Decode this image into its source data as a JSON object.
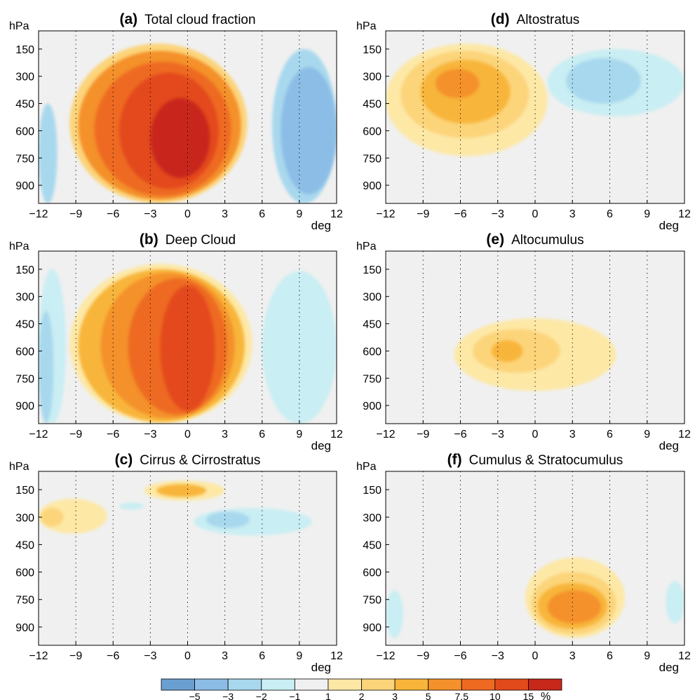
{
  "figure": {
    "colorbar": {
      "labels": [
        "−5",
        "−3",
        "−2",
        "−1",
        "1",
        "2",
        "3",
        "5",
        "7.5",
        "10",
        "15"
      ],
      "unit": "%",
      "colors": [
        "#6a9fd1",
        "#8cbde6",
        "#a8d8ed",
        "#c9eef3",
        "#f0f0f0",
        "#fde8a6",
        "#fcd47a",
        "#f8b53a",
        "#f4912a",
        "#ee6a20",
        "#e34a1b",
        "#c8281a"
      ]
    },
    "bg_color": "#f0f0f0"
  },
  "chart_data": [
    {
      "type": "heatmap",
      "panel": "(a)",
      "title": "Total cloud fraction",
      "xlabel": "deg",
      "ylabel": "hPa",
      "xticks": [
        "−12",
        "−9",
        "−6",
        "−3",
        "0",
        "3",
        "6",
        "9",
        "12"
      ],
      "yticks": [
        "150",
        "300",
        "450",
        "600",
        "750",
        "900"
      ],
      "xlim": [
        -12,
        12
      ],
      "ylim": [
        1000,
        50
      ],
      "regions": [
        {
          "x": [
            -9.5,
            4.8
          ],
          "y": [
            120,
            1000
          ],
          "level": "2"
        },
        {
          "x": [
            -8.8,
            4.3
          ],
          "y": [
            160,
            980
          ],
          "level": "5"
        },
        {
          "x": [
            -7.5,
            3.5
          ],
          "y": [
            220,
            960
          ],
          "level": "7.5"
        },
        {
          "x": [
            -5.5,
            2.5
          ],
          "y": [
            280,
            920
          ],
          "level": "10"
        },
        {
          "x": [
            -3,
            1.8
          ],
          "y": [
            420,
            860
          ],
          "level": "15"
        },
        {
          "x": [
            6.8,
            12
          ],
          "y": [
            150,
            1000
          ],
          "level": "−2"
        },
        {
          "x": [
            7.5,
            12
          ],
          "y": [
            250,
            950
          ],
          "level": "−3"
        },
        {
          "x": [
            -12,
            -10.5
          ],
          "y": [
            450,
            1000
          ],
          "level": "−2"
        }
      ]
    },
    {
      "type": "heatmap",
      "panel": "(b)",
      "title": "Deep Cloud",
      "xlabel": "deg",
      "ylabel": "hPa",
      "xticks": [
        "−12",
        "−9",
        "−6",
        "−3",
        "0",
        "3",
        "6",
        "9",
        "12"
      ],
      "yticks": [
        "150",
        "300",
        "450",
        "600",
        "750",
        "900"
      ],
      "xlim": [
        -12,
        12
      ],
      "ylim": [
        1000,
        50
      ],
      "regions": [
        {
          "x": [
            -9.5,
            5.2
          ],
          "y": [
            120,
            1000
          ],
          "level": "1"
        },
        {
          "x": [
            -8.8,
            4.6
          ],
          "y": [
            150,
            990
          ],
          "level": "3"
        },
        {
          "x": [
            -7,
            3.8
          ],
          "y": [
            170,
            970
          ],
          "level": "5"
        },
        {
          "x": [
            -4.8,
            3.2
          ],
          "y": [
            200,
            950
          ],
          "level": "7.5"
        },
        {
          "x": [
            -2.2,
            2.2
          ],
          "y": [
            240,
            930
          ],
          "level": "10"
        },
        {
          "x": [
            6,
            12
          ],
          "y": [
            160,
            1000
          ],
          "level": "−1"
        },
        {
          "x": [
            -12,
            -9.8
          ],
          "y": [
            150,
            1000
          ],
          "level": "−1"
        },
        {
          "x": [
            -12,
            -10.8
          ],
          "y": [
            380,
            1000
          ],
          "level": "−2"
        }
      ]
    },
    {
      "type": "heatmap",
      "panel": "(c)",
      "title": "Cirrus & Cirrostratus",
      "xlabel": "deg",
      "ylabel": "hPa",
      "xticks": [
        "−12",
        "−9",
        "−6",
        "−3",
        "0",
        "3",
        "6",
        "9",
        "12"
      ],
      "yticks": [
        "150",
        "300",
        "450",
        "600",
        "750",
        "900"
      ],
      "xlim": [
        -12,
        12
      ],
      "ylim": [
        1000,
        50
      ],
      "regions": [
        {
          "x": [
            -3.5,
            3
          ],
          "y": [
            100,
            210
          ],
          "level": "1"
        },
        {
          "x": [
            -2.5,
            1.5
          ],
          "y": [
            120,
            190
          ],
          "level": "3"
        },
        {
          "x": [
            -12,
            -6.5
          ],
          "y": [
            200,
            390
          ],
          "level": "1"
        },
        {
          "x": [
            -11.8,
            -10
          ],
          "y": [
            250,
            350
          ],
          "level": "2"
        },
        {
          "x": [
            0.5,
            10
          ],
          "y": [
            250,
            400
          ],
          "level": "−1"
        },
        {
          "x": [
            1.5,
            5
          ],
          "y": [
            270,
            360
          ],
          "level": "−2"
        },
        {
          "x": [
            -5.5,
            -3.5
          ],
          "y": [
            220,
            260
          ],
          "level": "−1"
        }
      ]
    },
    {
      "type": "heatmap",
      "panel": "(d)",
      "title": "Altostratus",
      "xlabel": "deg",
      "ylabel": "hPa",
      "xticks": [
        "−12",
        "−9",
        "−6",
        "−3",
        "0",
        "3",
        "6",
        "9",
        "12"
      ],
      "yticks": [
        "150",
        "300",
        "450",
        "600",
        "750",
        "900"
      ],
      "xlim": [
        -12,
        12
      ],
      "ylim": [
        1000,
        50
      ],
      "regions": [
        {
          "x": [
            -12,
            1
          ],
          "y": [
            120,
            740
          ],
          "level": "1"
        },
        {
          "x": [
            -10.8,
            -0.5
          ],
          "y": [
            160,
            640
          ],
          "level": "2"
        },
        {
          "x": [
            -9.2,
            -2
          ],
          "y": [
            210,
            560
          ],
          "level": "3"
        },
        {
          "x": [
            -8,
            -4.5
          ],
          "y": [
            260,
            420
          ],
          "level": "5"
        },
        {
          "x": [
            1,
            12
          ],
          "y": [
            150,
            520
          ],
          "level": "−1"
        },
        {
          "x": [
            2.5,
            8.5
          ],
          "y": [
            200,
            450
          ],
          "level": "−2"
        }
      ]
    },
    {
      "type": "heatmap",
      "panel": "(e)",
      "title": "Altocumulus",
      "xlabel": "deg",
      "ylabel": "hPa",
      "xticks": [
        "−12",
        "−9",
        "−6",
        "−3",
        "0",
        "3",
        "6",
        "9",
        "12"
      ],
      "yticks": [
        "150",
        "300",
        "450",
        "600",
        "750",
        "900"
      ],
      "xlim": [
        -12,
        12
      ],
      "ylim": [
        1000,
        50
      ],
      "regions": [
        {
          "x": [
            -6.5,
            6.5
          ],
          "y": [
            420,
            820
          ],
          "level": "1"
        },
        {
          "x": [
            -5,
            2
          ],
          "y": [
            480,
            720
          ],
          "level": "2"
        },
        {
          "x": [
            -3.5,
            -1
          ],
          "y": [
            540,
            660
          ],
          "level": "3"
        }
      ]
    },
    {
      "type": "heatmap",
      "panel": "(f)",
      "title": "Cumulus & Stratocumulus",
      "xlabel": "deg",
      "ylabel": "hPa",
      "xticks": [
        "−12",
        "−9",
        "−6",
        "−3",
        "0",
        "3",
        "6",
        "9",
        "12"
      ],
      "yticks": [
        "150",
        "300",
        "450",
        "600",
        "750",
        "900"
      ],
      "xlim": [
        -12,
        12
      ],
      "ylim": [
        1000,
        50
      ],
      "regions": [
        {
          "x": [
            -0.8,
            7.2
          ],
          "y": [
            520,
            960
          ],
          "level": "1"
        },
        {
          "x": [
            -0.3,
            6.5
          ],
          "y": [
            600,
            940
          ],
          "level": "2"
        },
        {
          "x": [
            0.2,
            5.8
          ],
          "y": [
            660,
            910
          ],
          "level": "3"
        },
        {
          "x": [
            1,
            5.3
          ],
          "y": [
            700,
            880
          ],
          "level": "5"
        },
        {
          "x": [
            -12,
            -10.6
          ],
          "y": [
            700,
            960
          ],
          "level": "−1"
        },
        {
          "x": [
            10.5,
            12
          ],
          "y": [
            650,
            880
          ],
          "level": "−1"
        }
      ]
    }
  ]
}
